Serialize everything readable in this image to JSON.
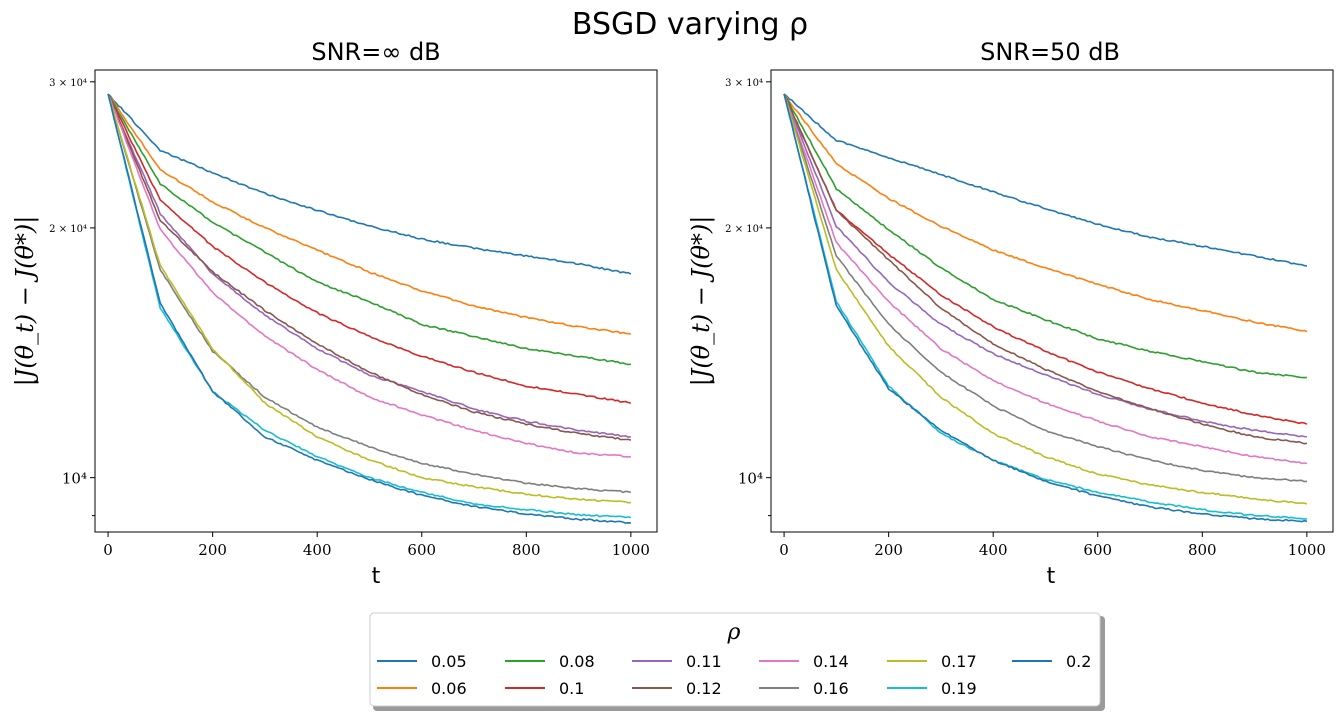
{
  "figure": {
    "suptitle": "BSGD varying ρ"
  },
  "legend": {
    "title": "ρ",
    "entries": [
      {
        "label": "0.05",
        "color": "#1f77b4"
      },
      {
        "label": "0.06",
        "color": "#ff7f0e"
      },
      {
        "label": "0.08",
        "color": "#2ca02c"
      },
      {
        "label": "0.1",
        "color": "#d62728"
      },
      {
        "label": "0.11",
        "color": "#9467bd"
      },
      {
        "label": "0.12",
        "color": "#8c564b"
      },
      {
        "label": "0.14",
        "color": "#e377c2"
      },
      {
        "label": "0.16",
        "color": "#7f7f7f"
      },
      {
        "label": "0.17",
        "color": "#bcbd22"
      },
      {
        "label": "0.19",
        "color": "#17becf"
      },
      {
        "label": "0.2",
        "color": "#1f77b4"
      }
    ]
  },
  "chart_data": [
    {
      "type": "line",
      "title": "SNR=∞ dB",
      "xlabel": "t",
      "ylabel": "|J(θ_t) − J(θ*)|",
      "xlim": [
        -25,
        1050
      ],
      "ylim": [
        8600,
        31000
      ],
      "yscale": "log",
      "xticks": [
        0,
        200,
        400,
        600,
        800,
        1000
      ],
      "xtick_labels": [
        "0",
        "200",
        "400",
        "600",
        "800",
        "1000"
      ],
      "yticks_labeled": [
        {
          "value": 30000,
          "label": "3 × 10⁴"
        },
        {
          "value": 20000,
          "label": "2 × 10⁴"
        },
        {
          "value": 10000,
          "label": "10⁴"
        }
      ],
      "yticks_minor": [
        9000
      ],
      "x": [
        0,
        100,
        200,
        300,
        400,
        500,
        600,
        700,
        800,
        900,
        1000
      ],
      "series": [
        {
          "name": "0.05",
          "color": "#1f77b4",
          "values": [
            29000,
            24800,
            23300,
            22000,
            21000,
            20100,
            19400,
            18900,
            18500,
            18100,
            17600
          ]
        },
        {
          "name": "0.06",
          "color": "#ff7f0e",
          "values": [
            29000,
            23500,
            21500,
            20000,
            18800,
            17700,
            16800,
            16100,
            15600,
            15200,
            14900
          ]
        },
        {
          "name": "0.08",
          "color": "#2ca02c",
          "values": [
            29000,
            22600,
            20300,
            18700,
            17200,
            16300,
            15300,
            14800,
            14300,
            14000,
            13700
          ]
        },
        {
          "name": "0.1",
          "color": "#d62728",
          "values": [
            29000,
            21600,
            19000,
            17200,
            15800,
            14800,
            14000,
            13400,
            12900,
            12600,
            12300
          ]
        },
        {
          "name": "0.11",
          "color": "#9467bd",
          "values": [
            29000,
            20800,
            17600,
            15700,
            14300,
            13300,
            12700,
            12100,
            11700,
            11400,
            11200
          ]
        },
        {
          "name": "0.12",
          "color": "#8c564b",
          "values": [
            29000,
            20400,
            17700,
            15900,
            14500,
            13400,
            12600,
            12000,
            11600,
            11300,
            11100
          ]
        },
        {
          "name": "0.14",
          "color": "#e377c2",
          "values": [
            29000,
            19900,
            16700,
            14800,
            13500,
            12500,
            11900,
            11400,
            11000,
            10700,
            10600
          ]
        },
        {
          "name": "0.16",
          "color": "#7f7f7f",
          "values": [
            29000,
            17800,
            14200,
            12500,
            11500,
            10900,
            10400,
            10100,
            9850,
            9700,
            9600
          ]
        },
        {
          "name": "0.17",
          "color": "#bcbd22",
          "values": [
            29000,
            18000,
            14300,
            12300,
            11200,
            10500,
            10000,
            9750,
            9550,
            9420,
            9330
          ]
        },
        {
          "name": "0.19",
          "color": "#17becf",
          "values": [
            29000,
            16000,
            12700,
            11400,
            10600,
            10000,
            9600,
            9300,
            9150,
            9020,
            8950
          ]
        },
        {
          "name": "0.2",
          "color": "#1f77b4",
          "values": [
            29000,
            16200,
            12700,
            11200,
            10500,
            9950,
            9520,
            9230,
            9040,
            8910,
            8820
          ]
        }
      ]
    },
    {
      "type": "line",
      "title": "SNR=50 dB",
      "xlabel": "t",
      "ylabel": "|J(θ_t) − J(θ*)|",
      "xlim": [
        -25,
        1050
      ],
      "ylim": [
        8600,
        31000
      ],
      "yscale": "log",
      "xticks": [
        0,
        200,
        400,
        600,
        800,
        1000
      ],
      "xtick_labels": [
        "0",
        "200",
        "400",
        "600",
        "800",
        "1000"
      ],
      "yticks_labeled": [
        {
          "value": 30000,
          "label": "3 × 10⁴"
        },
        {
          "value": 20000,
          "label": "2 × 10⁴"
        },
        {
          "value": 10000,
          "label": "10⁴"
        }
      ],
      "yticks_minor": [
        9000
      ],
      "x": [
        0,
        100,
        200,
        300,
        400,
        500,
        600,
        700,
        800,
        900,
        1000
      ],
      "series": [
        {
          "name": "0.05",
          "color": "#1f77b4",
          "values": [
            29000,
            25500,
            24300,
            23200,
            22100,
            21100,
            20200,
            19500,
            19000,
            18500,
            18000
          ]
        },
        {
          "name": "0.06",
          "color": "#ff7f0e",
          "values": [
            29000,
            23900,
            21700,
            20100,
            18800,
            17900,
            17100,
            16400,
            15900,
            15400,
            15000
          ]
        },
        {
          "name": "0.08",
          "color": "#2ca02c",
          "values": [
            29000,
            22300,
            19900,
            17900,
            16400,
            15500,
            14700,
            14200,
            13800,
            13400,
            13200
          ]
        },
        {
          "name": "0.1",
          "color": "#d62728",
          "values": [
            29000,
            21000,
            18600,
            16600,
            15200,
            14200,
            13400,
            12800,
            12300,
            11900,
            11600
          ]
        },
        {
          "name": "0.11",
          "color": "#9467bd",
          "values": [
            29000,
            20100,
            17200,
            15300,
            14100,
            13300,
            12600,
            12100,
            11700,
            11400,
            11200
          ]
        },
        {
          "name": "0.12",
          "color": "#8c564b",
          "values": [
            29000,
            21000,
            18300,
            16000,
            14500,
            13500,
            12700,
            12100,
            11600,
            11200,
            11000
          ]
        },
        {
          "name": "0.14",
          "color": "#e377c2",
          "values": [
            29000,
            19200,
            16300,
            14300,
            13100,
            12300,
            11700,
            11200,
            10900,
            10600,
            10400
          ]
        },
        {
          "name": "0.16",
          "color": "#7f7f7f",
          "values": [
            29000,
            18500,
            15300,
            13400,
            12200,
            11400,
            10900,
            10500,
            10200,
            10000,
            9900
          ]
        },
        {
          "name": "0.17",
          "color": "#bcbd22",
          "values": [
            29000,
            17800,
            14400,
            12500,
            11300,
            10600,
            10100,
            9800,
            9600,
            9420,
            9300
          ]
        },
        {
          "name": "0.19",
          "color": "#17becf",
          "values": [
            29000,
            16300,
            12900,
            11300,
            10500,
            9950,
            9600,
            9350,
            9150,
            9000,
            8920
          ]
        },
        {
          "name": "0.2",
          "color": "#1f77b4",
          "values": [
            29000,
            16100,
            12800,
            11400,
            10500,
            9900,
            9500,
            9220,
            9040,
            8920,
            8860
          ]
        }
      ]
    }
  ]
}
